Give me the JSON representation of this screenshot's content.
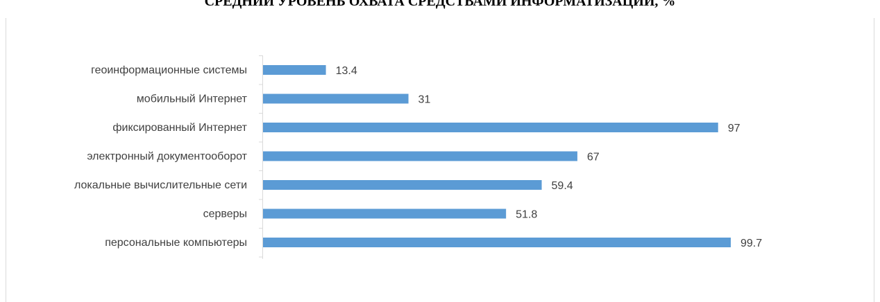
{
  "chart_data": {
    "type": "bar",
    "orientation": "horizontal",
    "title": "СРЕДНИЙ УРОВЕНЬ ОХВАТА СРЕДСТВАМИ ИНФОРМАТИЗАЦИИ, %",
    "categories": [
      "геоинформационные системы",
      "мобильный Интернет",
      "фиксированный Интернет",
      "электронный документооборот",
      "локальные вычислительные сети",
      "серверы",
      "персональные компьютеры"
    ],
    "values": [
      13.4,
      31,
      97,
      67,
      59.4,
      51.8,
      99.7
    ],
    "value_labels": [
      "13.4",
      "31",
      "97",
      "67",
      "59.4",
      "51.8",
      "99.7"
    ],
    "xlim": [
      0,
      100
    ],
    "grid": false,
    "legend": "none",
    "data_labels": true,
    "bar_color": "#5b9bd5"
  }
}
